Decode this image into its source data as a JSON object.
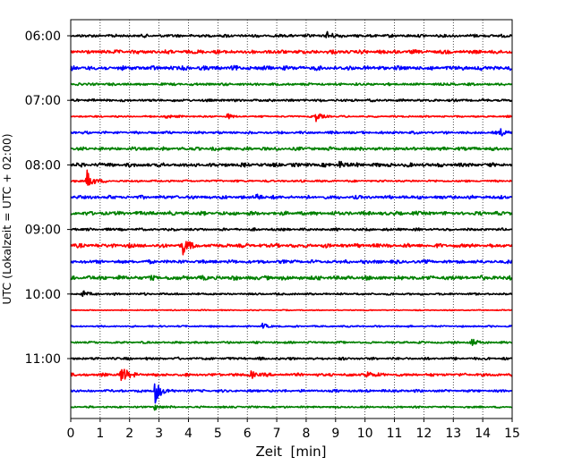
{
  "chart_data": {
    "type": "line",
    "title": "",
    "xlabel": "Zeit  [min]",
    "ylabel": "UTC (Lokalzeit = UTC + 02:00)",
    "xlim": [
      0,
      15
    ],
    "x_ticks": [
      0,
      1,
      2,
      3,
      4,
      5,
      6,
      7,
      8,
      9,
      10,
      11,
      12,
      13,
      14,
      15
    ],
    "y_tick_labels": [
      "06:00",
      "07:00",
      "08:00",
      "09:00",
      "10:00",
      "11:00"
    ],
    "grid": "vertical dotted",
    "trace_colors": [
      "#000000",
      "#ff0000",
      "#0000ff",
      "#008000"
    ],
    "series": [
      {
        "start": "06:00",
        "amplitude": 0.35,
        "events": [
          {
            "t": 8.7,
            "amp": 0.9
          }
        ]
      },
      {
        "start": "06:15",
        "amplitude": 0.45,
        "events": []
      },
      {
        "start": "06:30",
        "amplitude": 0.5,
        "events": []
      },
      {
        "start": "06:45",
        "amplitude": 0.3,
        "events": []
      },
      {
        "start": "07:00",
        "amplitude": 0.3,
        "events": []
      },
      {
        "start": "07:15",
        "amplitude": 0.2,
        "events": [
          {
            "t": 3.2,
            "amp": 0.6
          },
          {
            "t": 5.3,
            "amp": 0.5
          },
          {
            "t": 8.3,
            "amp": 1.1
          }
        ]
      },
      {
        "start": "07:30",
        "amplitude": 0.3,
        "events": [
          {
            "t": 14.6,
            "amp": 0.7
          }
        ]
      },
      {
        "start": "07:45",
        "amplitude": 0.4,
        "events": []
      },
      {
        "start": "08:00",
        "amplitude": 0.45,
        "events": [
          {
            "t": 9.1,
            "amp": 0.7
          }
        ]
      },
      {
        "start": "08:15",
        "amplitude": 0.25,
        "events": [
          {
            "t": 0.55,
            "amp": 2.2
          }
        ]
      },
      {
        "start": "08:30",
        "amplitude": 0.4,
        "events": [
          {
            "t": 6.3,
            "amp": 0.6
          }
        ]
      },
      {
        "start": "08:45",
        "amplitude": 0.45,
        "events": []
      },
      {
        "start": "09:00",
        "amplitude": 0.3,
        "events": []
      },
      {
        "start": "09:15",
        "amplitude": 0.45,
        "events": [
          {
            "t": 3.8,
            "amp": 1.8
          }
        ]
      },
      {
        "start": "09:30",
        "amplitude": 0.4,
        "events": []
      },
      {
        "start": "09:45",
        "amplitude": 0.5,
        "events": []
      },
      {
        "start": "10:00",
        "amplitude": 0.25,
        "events": [
          {
            "t": 0.4,
            "amp": 0.6
          }
        ]
      },
      {
        "start": "10:15",
        "amplitude": 0.12,
        "events": []
      },
      {
        "start": "10:30",
        "amplitude": 0.2,
        "events": [
          {
            "t": 6.5,
            "amp": 0.5
          }
        ]
      },
      {
        "start": "10:45",
        "amplitude": 0.25,
        "events": [
          {
            "t": 13.6,
            "amp": 0.8
          }
        ]
      },
      {
        "start": "11:00",
        "amplitude": 0.3,
        "events": []
      },
      {
        "start": "11:15",
        "amplitude": 0.35,
        "events": [
          {
            "t": 1.7,
            "amp": 2.4
          },
          {
            "t": 6.1,
            "amp": 0.8
          },
          {
            "t": 10.0,
            "amp": 0.9
          }
        ]
      },
      {
        "start": "11:30",
        "amplitude": 0.3,
        "events": [
          {
            "t": 2.85,
            "amp": 2.8
          }
        ]
      },
      {
        "start": "11:45",
        "amplitude": 0.22,
        "events": [
          {
            "t": 2.85,
            "amp": 0.6
          }
        ]
      }
    ]
  }
}
